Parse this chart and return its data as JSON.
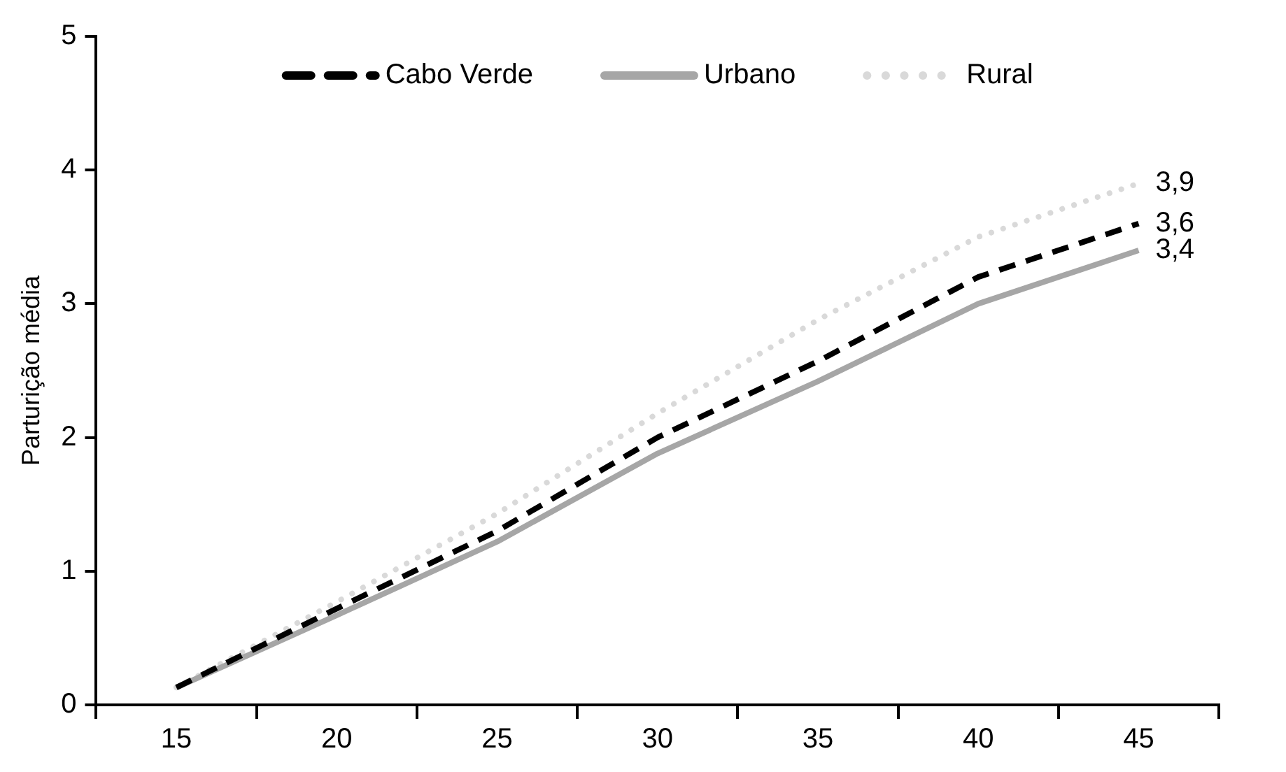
{
  "chart_data": {
    "type": "line",
    "ylabel": "Parturição média",
    "categories": [
      "15",
      "20",
      "25",
      "30",
      "35",
      "40",
      "45"
    ],
    "series": [
      {
        "name": "Cabo Verde",
        "color": "#000000",
        "line_style": "dashed",
        "values": [
          0.13,
          0.72,
          1.3,
          2.0,
          2.57,
          3.2,
          3.6
        ],
        "value_labels": [
          null,
          null,
          null,
          null,
          null,
          null,
          "3,6"
        ]
      },
      {
        "name": "Urbano",
        "color": "#a6a6a6",
        "line_style": "solid",
        "values": [
          0.13,
          0.67,
          1.22,
          1.88,
          2.42,
          3.0,
          3.4
        ],
        "value_labels": [
          null,
          null,
          null,
          null,
          null,
          null,
          "3,4"
        ]
      },
      {
        "name": "Rural",
        "color": "#d9d9d9",
        "line_style": "dotted",
        "values": [
          0.13,
          0.77,
          1.43,
          2.18,
          2.88,
          3.5,
          3.9
        ],
        "value_labels": [
          null,
          null,
          null,
          null,
          null,
          null,
          "3,9"
        ]
      }
    ],
    "ylim": [
      0,
      5
    ],
    "yticks": [
      0,
      1,
      2,
      3,
      4,
      5
    ],
    "grid": false,
    "legend": "top",
    "marker": "none"
  }
}
